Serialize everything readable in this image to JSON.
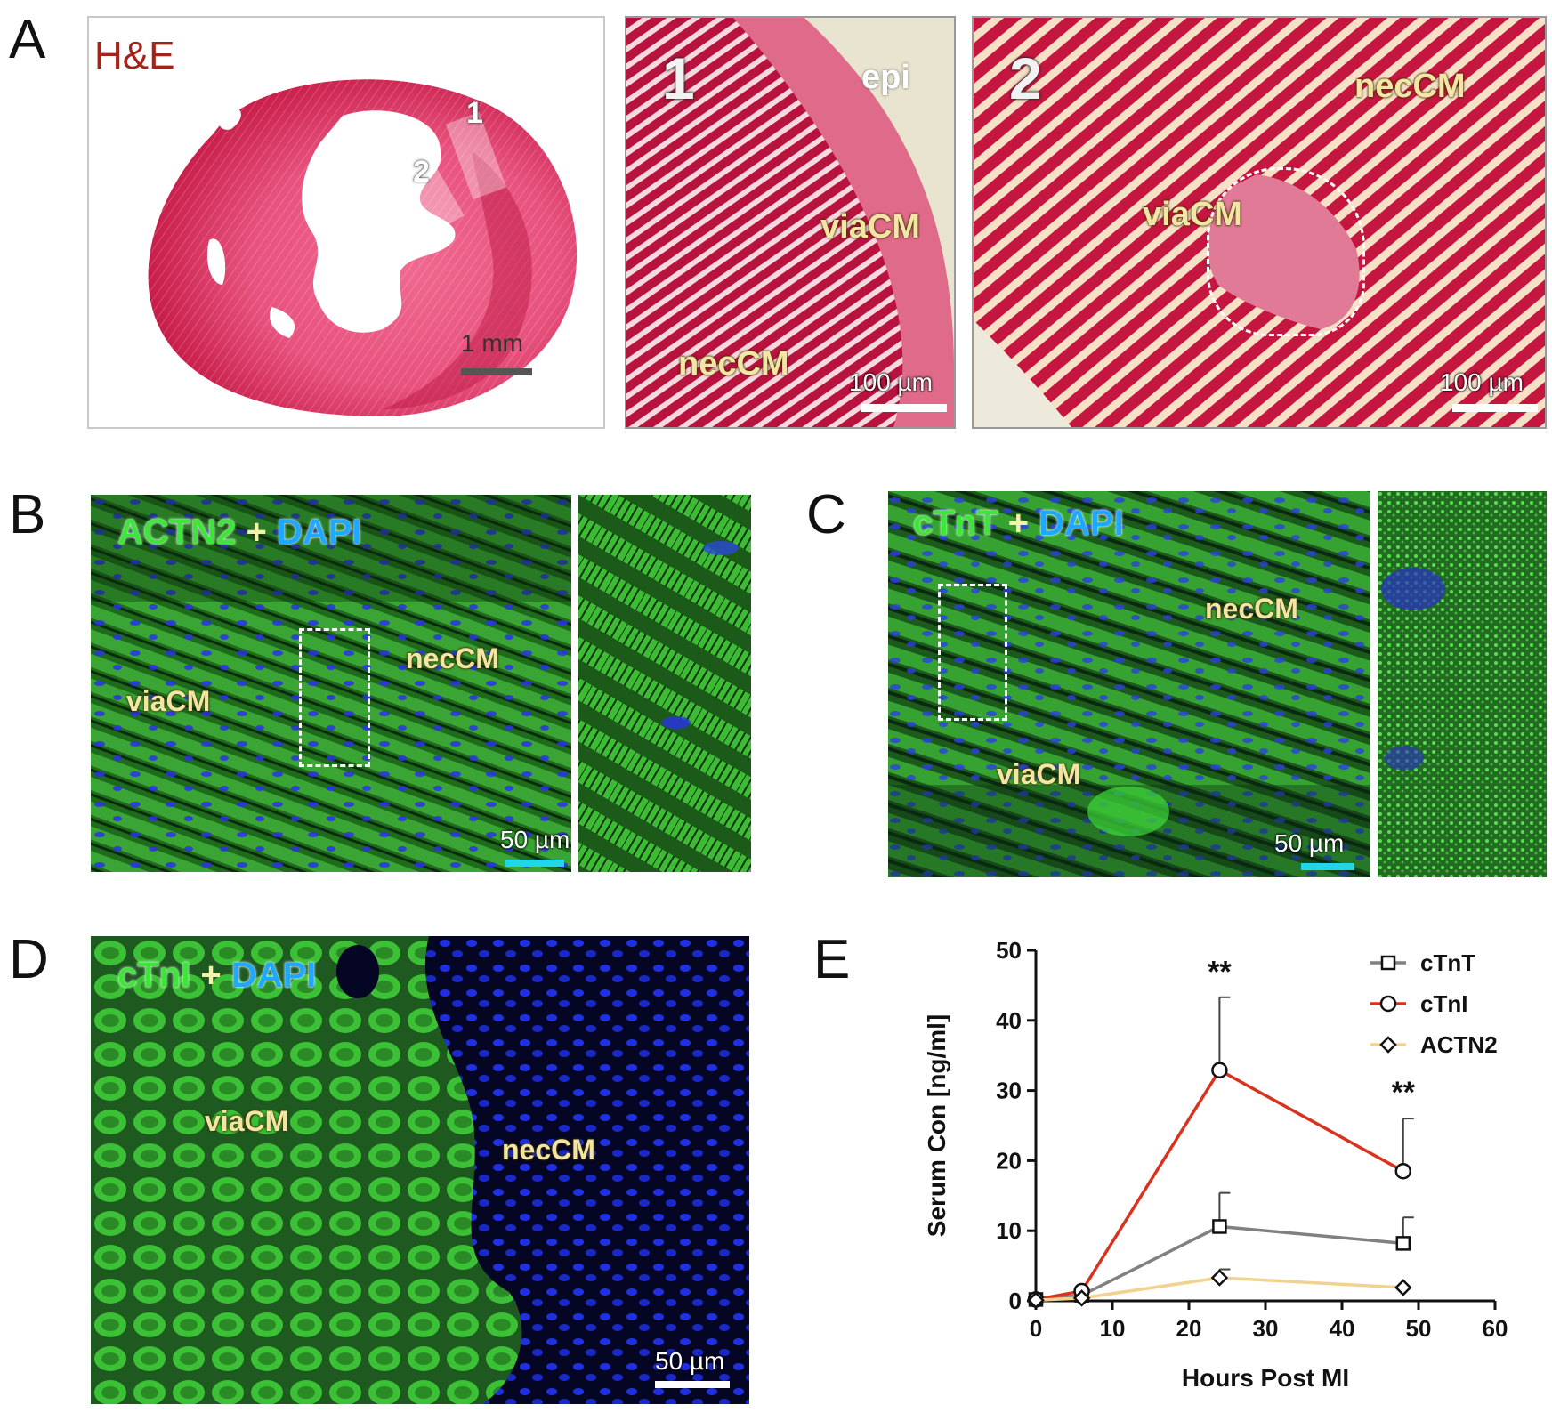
{
  "panels": {
    "A": {
      "label": "A",
      "stain_label": "H&E",
      "scale_main": "1 mm",
      "inset_markers": [
        "1",
        "2"
      ],
      "inset1": {
        "number": "1",
        "epi": "epi",
        "via": "viaCM",
        "nec": "necCM",
        "scale": "100 µm"
      },
      "inset2": {
        "number": "2",
        "nec": "necCM",
        "via": "viaCM",
        "scale": "100 µm"
      }
    },
    "B": {
      "label": "B",
      "marker": "ACTN2",
      "plus": "+",
      "dapi": "DAPI",
      "via": "viaCM",
      "nec": "necCM",
      "scale": "50 µm"
    },
    "C": {
      "label": "C",
      "marker": "cTnT",
      "plus": "+",
      "dapi": "DAPI",
      "via": "viaCM",
      "nec": "necCM",
      "scale": "50 µm"
    },
    "D": {
      "label": "D",
      "marker": "cTnI",
      "plus": "+",
      "dapi": "DAPI",
      "via": "viaCM",
      "nec": "necCM",
      "scale": "50 µm"
    },
    "E": {
      "label": "E"
    }
  },
  "colors": {
    "he_pink": "#e24a78",
    "he_dark": "#b0123e",
    "fluor_green": "#3ec23a",
    "dapi_blue": "#1a2cff",
    "series_ctnt": "#808080",
    "series_ctni": "#d9321f",
    "series_actn2": "#f2d28f"
  },
  "chart_data": {
    "type": "line",
    "xlabel": "Hours Post MI",
    "ylabel": "Serum Con [ng/ml]",
    "xlim": [
      0,
      60
    ],
    "ylim": [
      0,
      50
    ],
    "xticks": [
      0,
      10,
      20,
      30,
      40,
      50,
      60
    ],
    "yticks": [
      0,
      10,
      20,
      30,
      40,
      50
    ],
    "grid": false,
    "legend_position": "top-right",
    "series": [
      {
        "name": "cTnT",
        "marker": "square",
        "color": "#808080",
        "x": [
          0,
          6,
          24,
          48
        ],
        "y": [
          0.2,
          0.8,
          10.6,
          8.2
        ],
        "err": [
          0,
          0.3,
          4.8,
          3.7
        ]
      },
      {
        "name": "cTnI",
        "marker": "circle",
        "color": "#d9321f",
        "x": [
          0,
          6,
          24,
          48
        ],
        "y": [
          0.2,
          1.4,
          32.9,
          18.5
        ],
        "err": [
          0,
          0.4,
          10.4,
          7.5
        ]
      },
      {
        "name": "ACTN2",
        "marker": "diamond",
        "color": "#f2d28f",
        "x": [
          0,
          6,
          24,
          48
        ],
        "y": [
          0.1,
          0.4,
          3.3,
          1.9
        ],
        "err": [
          0,
          0.2,
          1.2,
          0.3
        ]
      }
    ],
    "annotations": [
      {
        "text": "**",
        "x": 24,
        "y": 45.5
      },
      {
        "text": "**",
        "x": 48,
        "y": 28.3
      }
    ]
  }
}
